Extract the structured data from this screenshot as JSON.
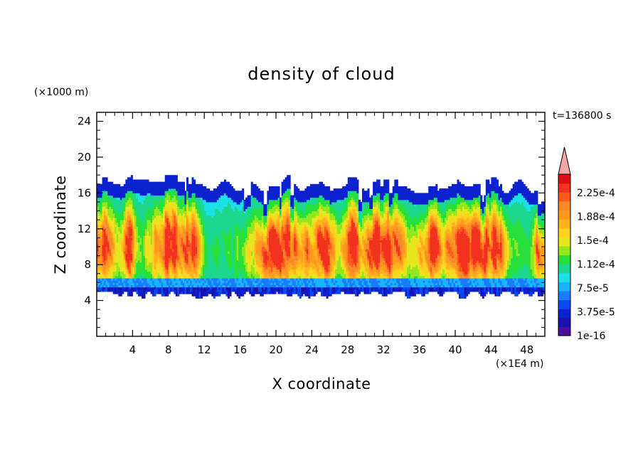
{
  "chart_data": {
    "type": "heatmap",
    "title": "density of cloud",
    "xlabel": "X coordinate",
    "ylabel": "Z coordinate",
    "x_unit": "(×1E4 m)",
    "y_unit": "(×1000 m)",
    "time_label": "t=136800 s",
    "xlim": [
      0,
      50
    ],
    "ylim": [
      0,
      25
    ],
    "x_ticks": [
      4,
      8,
      12,
      16,
      20,
      24,
      28,
      32,
      36,
      40,
      44,
      48
    ],
    "y_ticks": [
      4,
      8,
      12,
      16,
      20,
      24
    ],
    "colorbar": {
      "labels": [
        "2.25e-4",
        "1.88e-4",
        "1.5e-4",
        "1.12e-4",
        "7.5e-5",
        "3.75e-5",
        "1e-16"
      ],
      "colors": [
        "#4b0f9a",
        "#1c10ae",
        "#0d22cf",
        "#0b49ef",
        "#1a7cff",
        "#1ab4ff",
        "#1ce0e8",
        "#1cd88e",
        "#28e03c",
        "#96e61e",
        "#e6e61e",
        "#ffd21e",
        "#ffb31e",
        "#ff9a1e",
        "#f78a28",
        "#ff5a1e",
        "#f0321e",
        "#dc0f14"
      ],
      "extend_color": "#f4a6a6"
    },
    "cloud_regions": [
      {
        "x": [
          0,
          50
        ],
        "z": [
          4.5,
          17
        ],
        "level": "1e-16 to 3.75e-5",
        "note": "cloud layer envelope"
      },
      {
        "x": [
          6,
          10
        ],
        "z": [
          7,
          14
        ],
        "level": "~1.88e-4",
        "note": "core"
      },
      {
        "x": [
          18,
          24
        ],
        "z": [
          7,
          15
        ],
        "level": "~1.88e-4",
        "note": "core"
      },
      {
        "x": [
          29,
          34
        ],
        "z": [
          7,
          17
        ],
        "level": "~2.0e-4",
        "note": "core"
      },
      {
        "x": [
          39,
          44
        ],
        "z": [
          7,
          17
        ],
        "level": "~2.0e-4",
        "note": "core"
      }
    ]
  }
}
